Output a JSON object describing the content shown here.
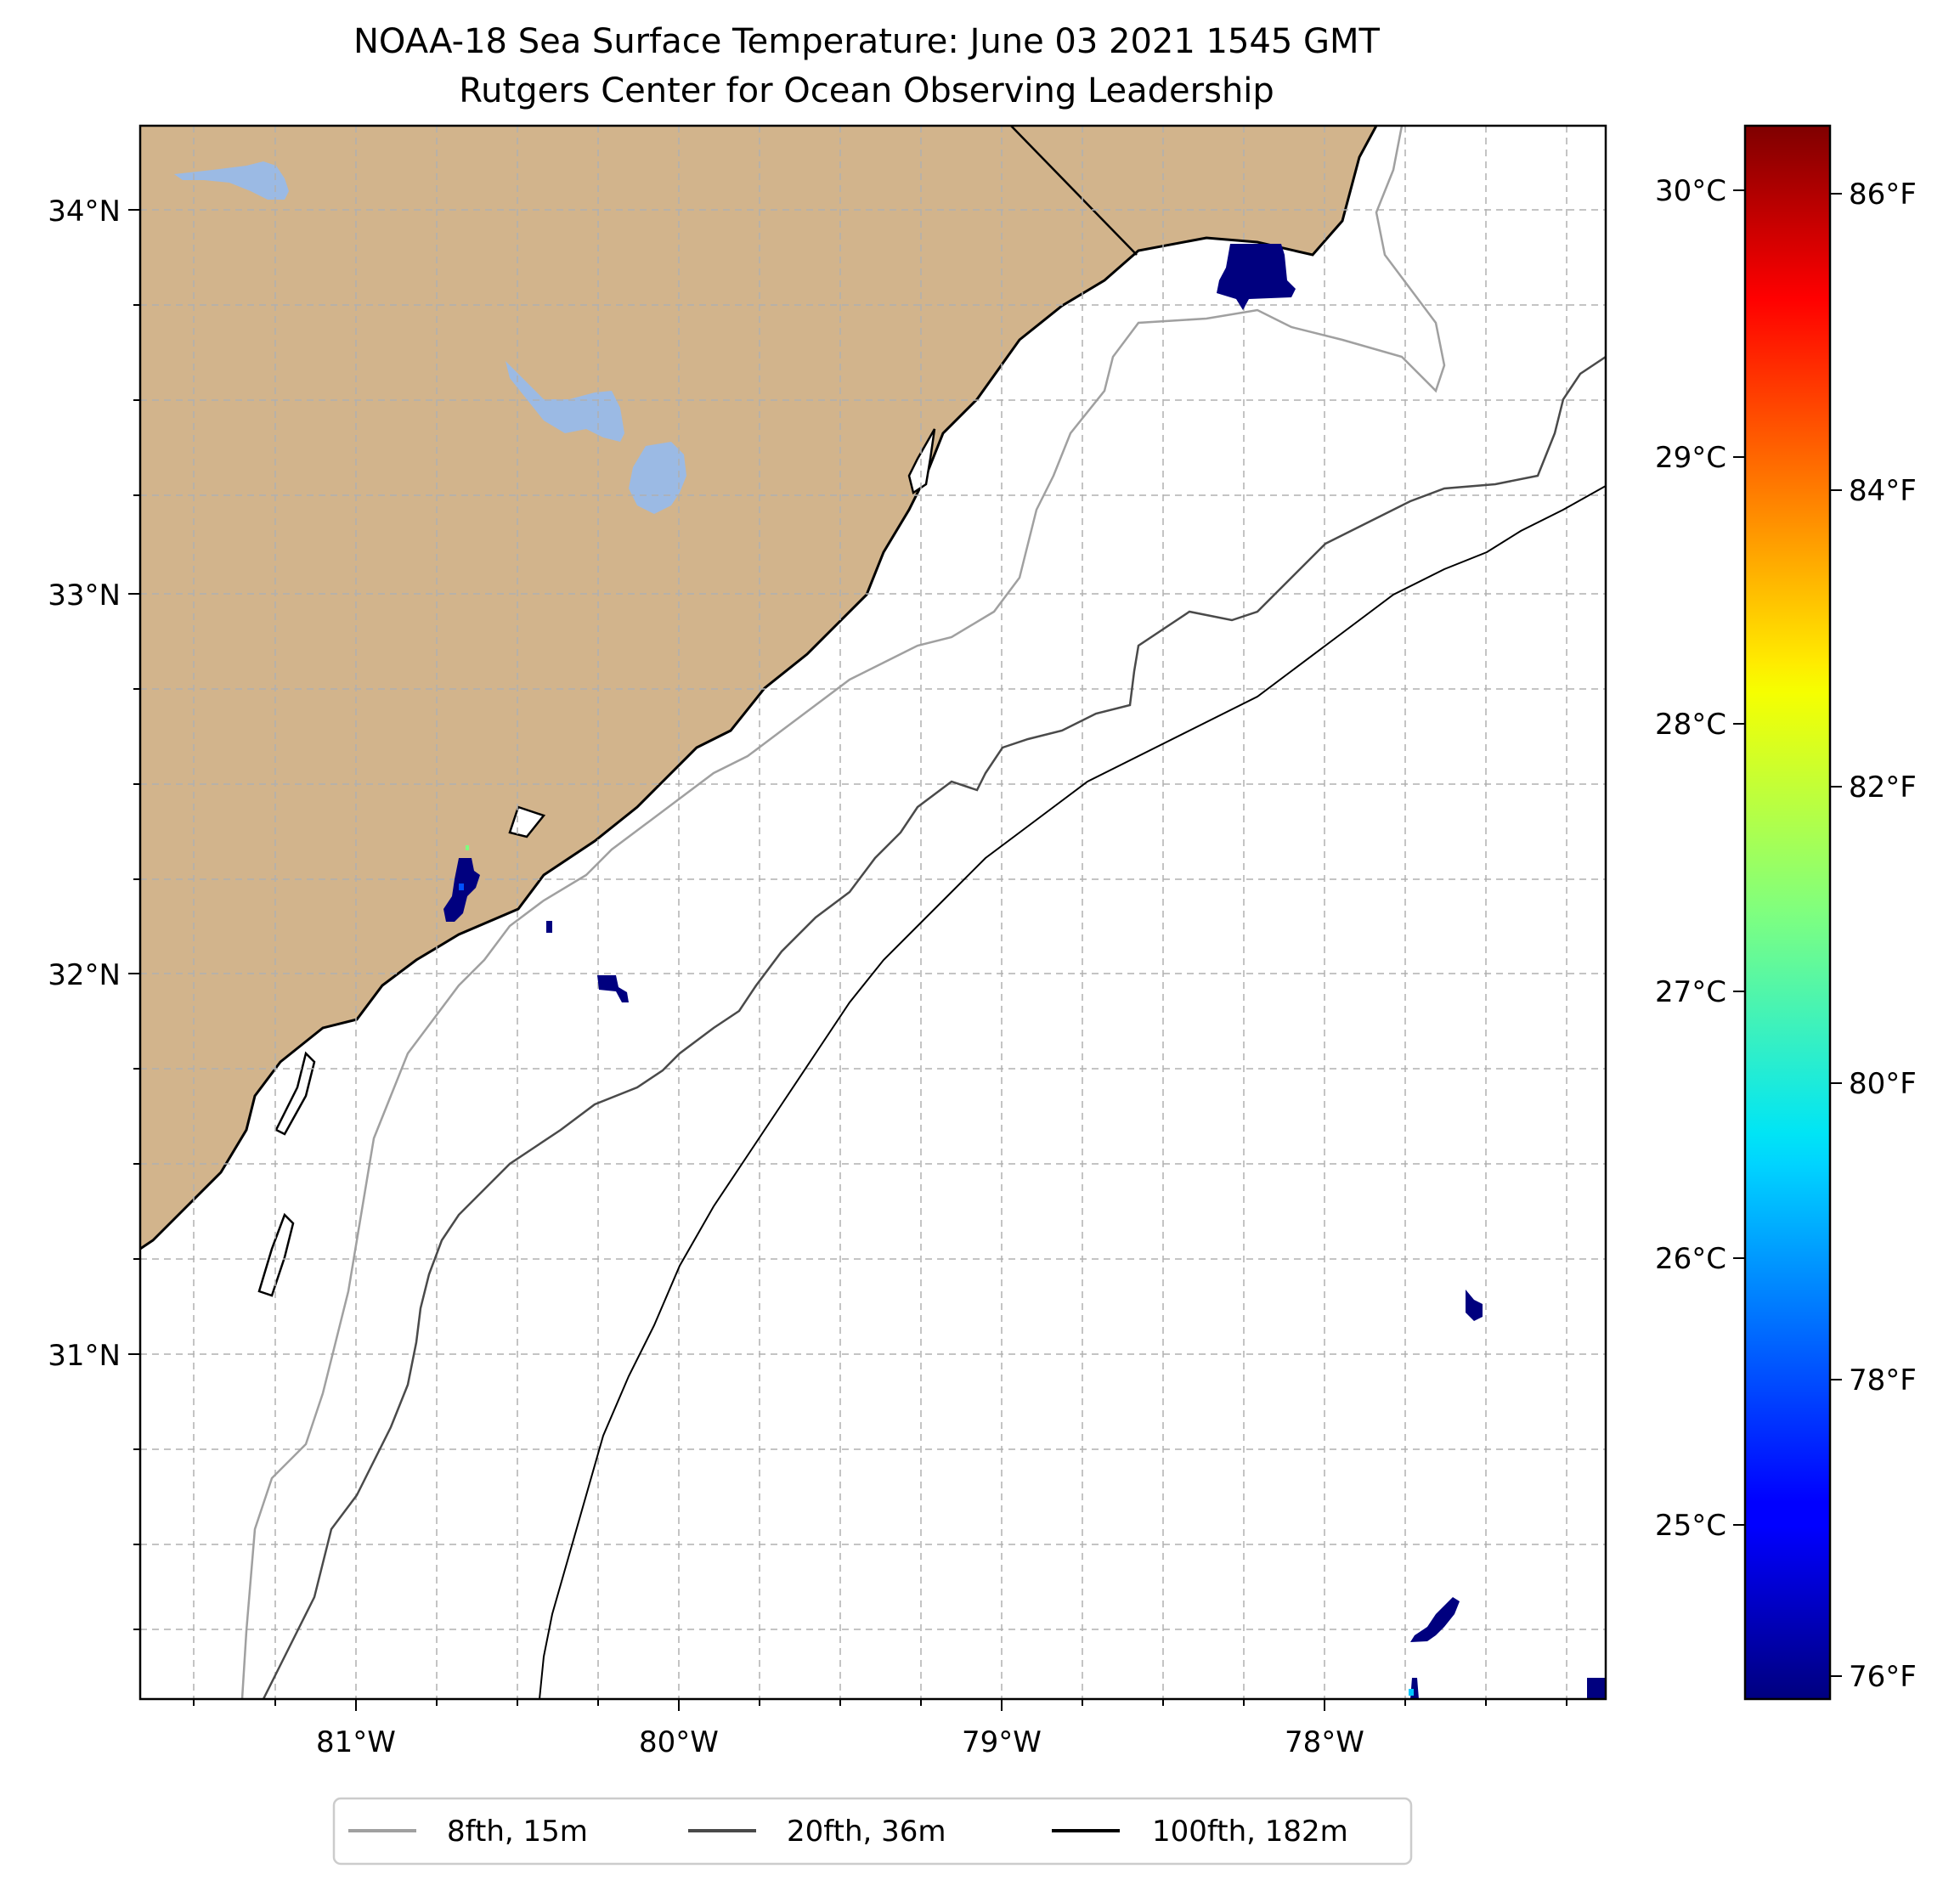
{
  "title": {
    "line1": "NOAA-18 Sea Surface Temperature: June 03 2021 1545 GMT",
    "line2": "Rutgers Center for Ocean Observing Leadership"
  },
  "map": {
    "lat_labels": [
      "34°N",
      "33°N",
      "32°N",
      "31°N"
    ],
    "lon_labels": [
      "81°W",
      "80°W",
      "79°W",
      "78°W"
    ],
    "lon_ticks": [
      -81,
      -80,
      -79,
      -78
    ],
    "lat_ticks": [
      34,
      33,
      32,
      31
    ],
    "colors": {
      "land": "#d2b48c",
      "lakes": "#9bbae4",
      "isobath_8fth": "#a0a0a0",
      "isobath_20fth": "#4a4a4a",
      "isobath_100fth": "#000000",
      "sst_patch": "#00007f"
    }
  },
  "colorbar": {
    "celsius_labels": [
      "30°C",
      "29°C",
      "28°C",
      "27°C",
      "26°C",
      "25°C"
    ],
    "celsius_ticks": [
      30,
      29,
      28,
      27,
      26,
      25
    ],
    "fahrenheit_labels": [
      "86°F",
      "84°F",
      "82°F",
      "80°F",
      "78°F",
      "76°F"
    ],
    "fahrenheit_ticks": [
      86,
      84,
      82,
      80,
      78,
      76
    ],
    "colormap": "jet"
  },
  "legend": {
    "items": [
      {
        "label": "8fth, 15m",
        "color": "#a0a0a0"
      },
      {
        "label": "20fth, 36m",
        "color": "#4a4a4a"
      },
      {
        "label": "100fth, 182m",
        "color": "#000000"
      }
    ]
  }
}
